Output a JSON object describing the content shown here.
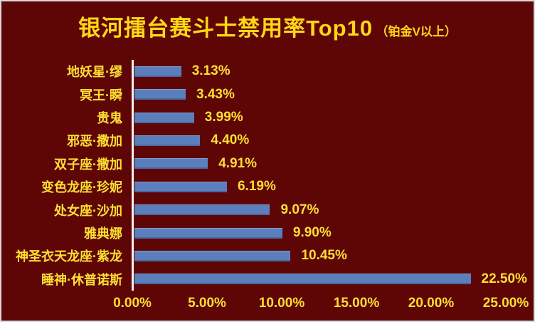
{
  "chart_data": {
    "type": "bar",
    "orientation": "horizontal",
    "title": "银河擂台赛斗士禁用率Top10",
    "subtitle": "（铂金V以上）",
    "categories": [
      "地妖星·缪",
      "冥王·瞬",
      "贵鬼",
      "邪恶·撒加",
      "双子座·撒加",
      "变色龙座·珍妮",
      "处女座·沙加",
      "雅典娜",
      "神圣衣天龙座·紫龙",
      "睡神·休普诺斯"
    ],
    "values": [
      3.13,
      3.43,
      3.99,
      4.4,
      4.91,
      6.19,
      9.07,
      9.9,
      10.45,
      22.5
    ],
    "value_labels": [
      "3.13%",
      "3.43%",
      "3.99%",
      "4.40%",
      "4.91%",
      "6.19%",
      "9.07%",
      "9.90%",
      "10.45%",
      "22.50%"
    ],
    "x_ticks": [
      "0.00%",
      "5.00%",
      "10.00%",
      "15.00%",
      "20.00%",
      "25.00%"
    ],
    "xlim": [
      0,
      25
    ],
    "legend": "none",
    "grid": "off",
    "colors": {
      "background": "#5E0606",
      "bar": "#5B7EBD",
      "label_text": "#FFDE32",
      "title_text": "#FFD716",
      "axis_line": "#F5EFEF",
      "outer_border": "#D9D9D9"
    }
  }
}
